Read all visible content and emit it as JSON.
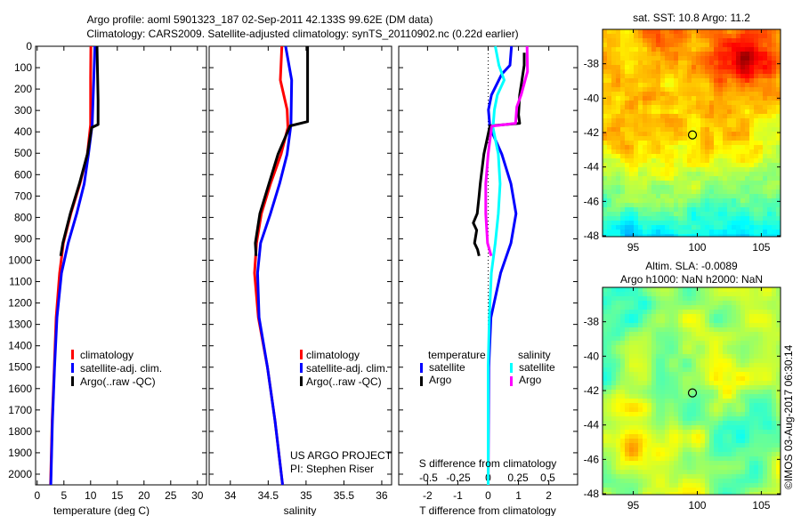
{
  "header": {
    "title_line1": "Argo profile: aoml 5901323_187 02-Sep-2011 42.133S 99.62E (DM data)",
    "title_line2": "Climatology: CARS2009. Satellite-adjusted climatology: synTS_20110902.nc (0.22d earlier)"
  },
  "colors": {
    "climatology": "#ff0000",
    "satellite": "#0000ff",
    "argo": "#000000",
    "sal_satellite": "#00ffff",
    "sal_argo": "#ff00ff"
  },
  "credit": "©IMOS 03-Aug-2017 06:30:14",
  "project": {
    "line1": "US ARGO PROJECT",
    "line2": "PI: Stephen Riser"
  },
  "chart_data": [
    {
      "type": "line",
      "name": "temperature",
      "xlabel": "temperature (deg C)",
      "ylabel": "depth",
      "xlim": [
        -0.3,
        31.7
      ],
      "ylim": [
        2050,
        0
      ],
      "xticks": [
        0,
        5,
        10,
        15,
        20,
        25,
        30
      ],
      "yticks": [
        0,
        100,
        200,
        300,
        400,
        500,
        600,
        700,
        800,
        900,
        1000,
        1100,
        1200,
        1300,
        1400,
        1500,
        1600,
        1700,
        1800,
        1900,
        2000
      ],
      "legend": [
        "climatology",
        "satellite-adj. clim.",
        "Argo(..raw -QC)"
      ],
      "series": [
        {
          "name": "climatology",
          "color": "#ff0000",
          "depth": [
            0,
            150,
            366,
            504,
            643,
            782,
            920,
            1060,
            1268,
            1500,
            1750,
            2050
          ],
          "values": [
            10.05,
            10.0,
            10.0,
            9.4,
            8.0,
            6.3,
            4.9,
            4.2,
            3.55,
            3.2,
            2.8,
            2.5
          ]
        },
        {
          "name": "satellite-adj. clim.",
          "color": "#0000ff",
          "depth": [
            0,
            150,
            366,
            504,
            643,
            782,
            920,
            1060,
            1268,
            1500,
            1750,
            2050
          ],
          "values": [
            10.8,
            10.6,
            10.3,
            9.6,
            8.8,
            7.4,
            5.8,
            4.55,
            3.7,
            3.25,
            2.85,
            2.55
          ]
        },
        {
          "name": "Argo(..raw -QC)",
          "color": "#000000",
          "depth": [
            0,
            250,
            366,
            380,
            504,
            643,
            782,
            920,
            980
          ],
          "values": [
            11.2,
            11.4,
            11.4,
            10.2,
            9.4,
            7.9,
            6.2,
            4.8,
            4.4
          ]
        }
      ]
    },
    {
      "type": "line",
      "name": "salinity",
      "xlabel": "salinity",
      "xlim": [
        33.72,
        36.13
      ],
      "ylim": [
        2050,
        0
      ],
      "xticks": [
        34,
        34.5,
        35,
        35.5,
        36
      ],
      "legend": [
        "climatology",
        "satellite-adj. clim.",
        "Argo(..raw -QC)"
      ],
      "series": [
        {
          "name": "climatology",
          "color": "#ff0000",
          "depth": [
            0,
            158,
            296,
            380,
            504,
            643,
            782,
            920,
            1060,
            1268,
            1500,
            1750,
            2050
          ],
          "values": [
            34.68,
            34.66,
            34.75,
            34.76,
            34.67,
            34.53,
            34.41,
            34.345,
            34.32,
            34.37,
            34.49,
            34.59,
            34.69
          ]
        },
        {
          "name": "satellite-adj. clim.",
          "color": "#0000ff",
          "depth": [
            0,
            158,
            366,
            504,
            643,
            782,
            920,
            1060,
            1268,
            1500,
            1750,
            2050
          ],
          "values": [
            34.73,
            34.81,
            34.8,
            34.75,
            34.65,
            34.53,
            34.4,
            34.36,
            34.38,
            34.49,
            34.59,
            34.69
          ]
        },
        {
          "name": "Argo(..raw -QC)",
          "color": "#000000",
          "depth": [
            0,
            352,
            372,
            504,
            643,
            782,
            920,
            980
          ],
          "values": [
            35.02,
            35.02,
            34.79,
            34.63,
            34.51,
            34.39,
            34.33,
            34.34
          ]
        }
      ]
    },
    {
      "type": "line",
      "name": "differences",
      "xlabel": "T difference from climatology",
      "xlabel2": "S difference from climatology",
      "xlim": [
        -2.95,
        2.95
      ],
      "xlim2": [
        -0.75,
        0.75
      ],
      "ylim": [
        2050,
        0
      ],
      "xticks": [
        -2,
        -1,
        0,
        1,
        2
      ],
      "xticks2": [
        -0.5,
        -0.25,
        0,
        0.25,
        0.5
      ],
      "legend_headers": [
        "temperature",
        "salinity"
      ],
      "legend": [
        "satellite",
        "Argo",
        "satellite",
        "Argo"
      ],
      "series": [
        {
          "name": "T satellite",
          "axis": "T",
          "color": "#0000ff",
          "depth": [
            0,
            89,
            130,
            228,
            297,
            380,
            504,
            643,
            782,
            920,
            1060,
            1268,
            1500,
            2050
          ],
          "values": [
            0.77,
            0.72,
            0.45,
            0.11,
            0.01,
            0.06,
            0.45,
            0.75,
            0.92,
            0.75,
            0.41,
            0.09,
            0.02,
            0.0
          ]
        },
        {
          "name": "T Argo",
          "axis": "T",
          "color": "#000000",
          "depth": [
            30,
            89,
            228,
            320,
            360,
            372,
            504,
            643,
            700,
            782,
            826,
            860,
            920,
            950,
            980
          ],
          "values": [
            1.19,
            1.19,
            1.04,
            1.0,
            1.04,
            0.06,
            -0.14,
            -0.26,
            -0.3,
            -0.36,
            -0.49,
            -0.38,
            -0.45,
            -0.35,
            -0.3
          ]
        },
        {
          "name": "S satellite",
          "axis": "S",
          "color": "#00ffff",
          "depth": [
            0,
            89,
            158,
            228,
            297,
            380,
            504,
            643,
            782,
            920,
            1060,
            1268,
            1500,
            2050
          ],
          "values": [
            0.06,
            0.09,
            0.134,
            0.077,
            0.052,
            0.04,
            0.085,
            0.1,
            0.085,
            0.06,
            0.027,
            0.01,
            0.0,
            0.0
          ]
        },
        {
          "name": "S Argo",
          "axis": "S",
          "color": "#ff00ff",
          "depth": [
            0,
            118,
            228,
            283,
            360,
            373,
            504,
            643,
            782,
            920,
            980
          ],
          "values": [
            0.326,
            0.33,
            0.276,
            0.24,
            0.23,
            0.03,
            0.0,
            -0.02,
            -0.02,
            -0.005,
            0.025
          ]
        }
      ]
    },
    {
      "type": "heatmap",
      "name": "sst-map",
      "title": "sat. SST: 10.8 Argo: 11.2",
      "xlim": [
        92.6,
        106.5
      ],
      "ylim": [
        -48.05,
        -36
      ],
      "xticks": [
        95,
        100,
        105
      ],
      "yticks": [
        -38,
        -40,
        -42,
        -44,
        -46,
        -48
      ],
      "marker": {
        "lon": 99.62,
        "lat": -42.133
      }
    },
    {
      "type": "heatmap",
      "name": "sla-map",
      "title_line1": "Altim. SLA: -0.0089",
      "title_line2": "Argo h1000: NaN h2000: NaN",
      "xlim": [
        92.6,
        106.5
      ],
      "ylim": [
        -48.05,
        -36
      ],
      "xticks": [
        95,
        100,
        105
      ],
      "yticks": [
        -38,
        -40,
        -42,
        -44,
        -46,
        -48
      ],
      "marker": {
        "lon": 99.62,
        "lat": -42.133
      }
    }
  ]
}
